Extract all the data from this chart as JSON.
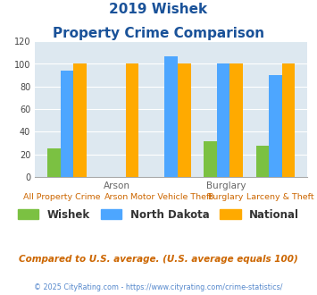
{
  "title_line1": "2019 Wishek",
  "title_line2": "Property Crime Comparison",
  "categories": [
    "All Property Crime",
    "Arson",
    "Motor Vehicle Theft",
    "Burglary",
    "Larceny & Theft"
  ],
  "top_labels": [
    "",
    "Arson",
    "",
    "Burglary",
    ""
  ],
  "wishek": [
    25,
    0,
    0,
    32,
    28
  ],
  "north_dakota": [
    94,
    0,
    107,
    100,
    90
  ],
  "national": [
    100,
    100,
    100,
    100,
    100
  ],
  "bar_color_wishek": "#7bc142",
  "bar_color_nd": "#4da6ff",
  "bar_color_national": "#ffaa00",
  "bg_color": "#dde8f0",
  "title_color": "#1a5299",
  "label_color_top": "#777777",
  "label_color_bot": "#cc6600",
  "legend_label_wishek": "Wishek",
  "legend_label_nd": "North Dakota",
  "legend_label_national": "National",
  "footer_text": "Compared to U.S. average. (U.S. average equals 100)",
  "copyright_text": "© 2025 CityRating.com - https://www.cityrating.com/crime-statistics/",
  "ylim": [
    0,
    120
  ],
  "yticks": [
    0,
    20,
    40,
    60,
    80,
    100,
    120
  ]
}
